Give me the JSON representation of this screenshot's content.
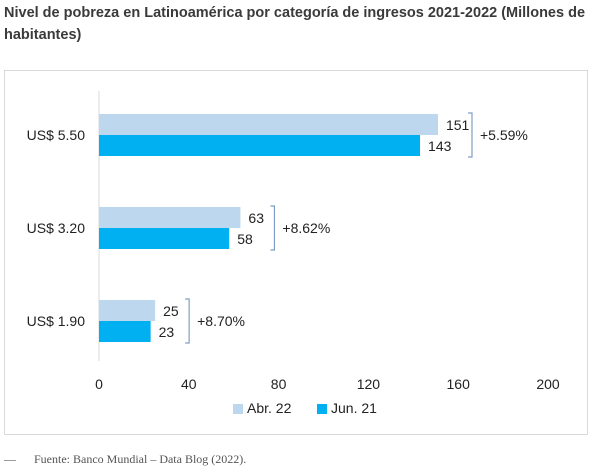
{
  "title": "Nivel de pobreza en Latinoamérica por categoría de ingresos 2021-2022 (Millones de habitantes)",
  "source": "—      Fuente: Banco Mundial – Data Blog (2022).",
  "chart_data": {
    "type": "bar",
    "orientation": "horizontal",
    "categories": [
      "US$ 5.50",
      "US$ 3.20",
      "US$ 1.90"
    ],
    "series": [
      {
        "name": "Abr. 22",
        "values": [
          151,
          63,
          25
        ],
        "color": "#bdd7ee"
      },
      {
        "name": "Jun. 21",
        "values": [
          143,
          58,
          23
        ],
        "color": "#00b0f0"
      }
    ],
    "changes": [
      "+5.59%",
      "+8.62%",
      "+8.70%"
    ],
    "xlim": [
      0,
      200
    ],
    "xticks": [
      0,
      40,
      80,
      120,
      160,
      200
    ],
    "grid": false,
    "legend": "bottom",
    "title": "Nivel de pobreza en Latinoamérica por categoría de ingresos 2021-2022 (Millones de habitantes)",
    "xlabel": "",
    "ylabel": ""
  },
  "colors": {
    "bracket": "#7f9fc8",
    "axis": "#d9d9d9"
  }
}
